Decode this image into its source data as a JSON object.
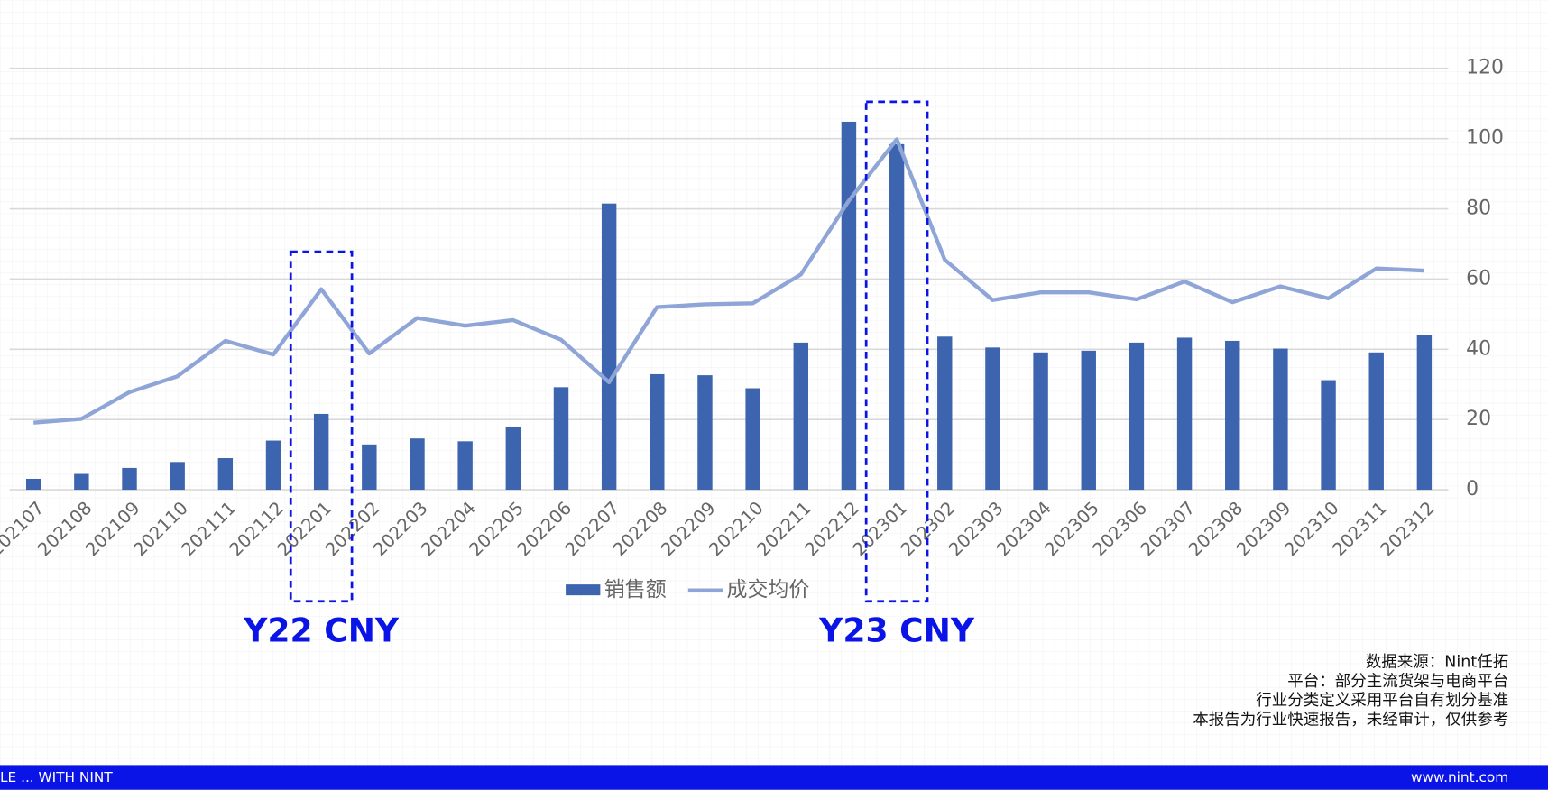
{
  "chart_data": {
    "type": "bar-line",
    "categories": [
      "202107",
      "202108",
      "202109",
      "202110",
      "202111",
      "202112",
      "202201",
      "202202",
      "202203",
      "202204",
      "202205",
      "202206",
      "202207",
      "202208",
      "202209",
      "202210",
      "202211",
      "202212",
      "202301",
      "202302",
      "202303",
      "202304",
      "202305",
      "202306",
      "202307",
      "202308",
      "202309",
      "202310",
      "202311",
      "202312"
    ],
    "series": [
      {
        "name": "销售额",
        "type": "bar",
        "color": "#3d64ae",
        "values": [
          3.1,
          4.5,
          6.2,
          7.9,
          9,
          14,
          21.6,
          12.9,
          14.6,
          13.8,
          18,
          29.2,
          81.5,
          32.9,
          32.6,
          28.9,
          41.9,
          104.8,
          98.4,
          43.6,
          40.5,
          39.1,
          39.6,
          41.9,
          43.3,
          42.4,
          40.2,
          31.2,
          39.1,
          44.1
        ]
      },
      {
        "name": "成交均价",
        "type": "line",
        "color": "#8fa5d8",
        "values": [
          19.1,
          20.2,
          27.8,
          32.3,
          42.4,
          38.5,
          57.1,
          38.8,
          48.9,
          46.7,
          48.3,
          42.7,
          30.6,
          52,
          52.8,
          53.1,
          61.3,
          82.3,
          99.8,
          65.5,
          54,
          56.2,
          56.2,
          54.2,
          59.3,
          53.4,
          57.9,
          54.5,
          63,
          62.4
        ]
      }
    ],
    "ylim": [
      0,
      120
    ],
    "yticks": [
      0,
      20,
      40,
      60,
      80,
      100,
      120
    ],
    "grid": true,
    "legend": "bottom",
    "annotations": [
      {
        "label": "Y22 CNY",
        "x": "202201",
        "color": "#0a14e6"
      },
      {
        "label": "Y23 CNY",
        "x": "202301",
        "color": "#0a14e6"
      }
    ]
  },
  "source_notes": [
    "数据来源：Nint任拓",
    "平台：部分主流货架与电商平台",
    "行业分类定义采用平台自有划分基准",
    "本报告为行业快速报告，未经审计，仅供参考"
  ],
  "footer": {
    "left": "LE ... WITH NINT",
    "right": "www.nint.com"
  }
}
